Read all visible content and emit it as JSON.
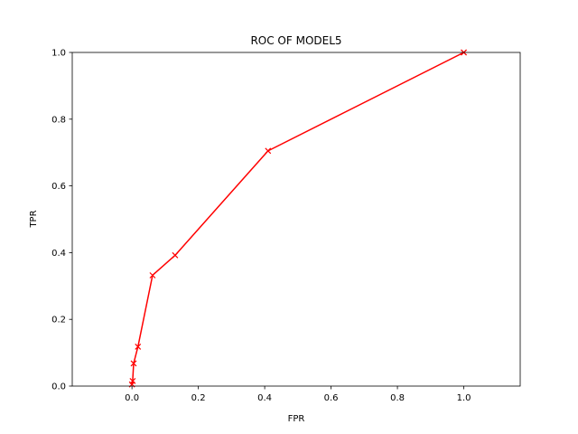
{
  "chart_data": {
    "type": "line",
    "title": "ROC OF MODEL5",
    "xlabel": "FPR",
    "ylabel": "TPR",
    "xlim": [
      -0.18,
      1.17
    ],
    "ylim": [
      0,
      1.0
    ],
    "x_ticks": [
      0.0,
      0.2,
      0.4,
      0.6,
      0.8,
      1.0
    ],
    "x_tick_labels": [
      "0.0",
      "0.2",
      "0.4",
      "0.6",
      "0.8",
      "1.0"
    ],
    "y_ticks": [
      0.0,
      0.2,
      0.4,
      0.6,
      0.8,
      1.0
    ],
    "y_tick_labels": [
      "0.0",
      "0.2",
      "0.4",
      "0.6",
      "0.8",
      "1.0"
    ],
    "grid": false,
    "series": [
      {
        "color": "#ff0000",
        "marker": "x",
        "x": [
          0.0,
          0.002,
          0.005,
          0.018,
          0.062,
          0.13,
          0.41,
          1.0,
          1.0
        ],
        "y": [
          0.005,
          0.015,
          0.068,
          0.118,
          0.332,
          0.392,
          0.705,
          1.0,
          1.0
        ]
      }
    ]
  }
}
